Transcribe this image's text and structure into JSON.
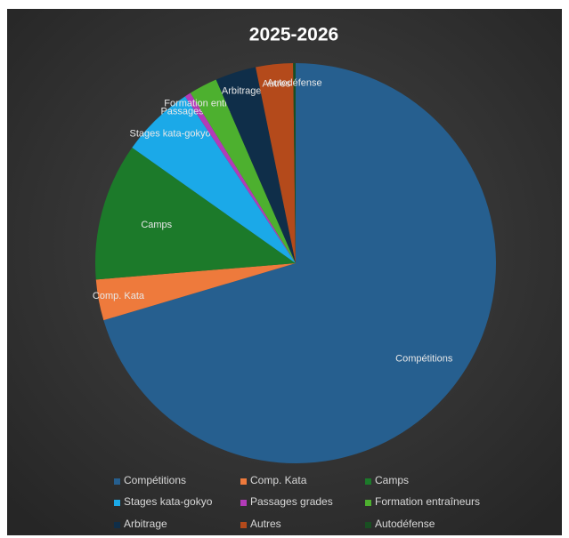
{
  "chart_data": {
    "type": "pie",
    "title": "2025-2026",
    "categories": [
      "Compétitions",
      "Comp. Kata",
      "Camps",
      "Stages kata-gokyo",
      "Passages grades",
      "Formation entraîneurs",
      "Arbitrage",
      "Autres",
      "Autodéfense"
    ],
    "values": [
      70.4,
      3.3,
      11.1,
      5.9,
      0.5,
      2.3,
      3.3,
      3.0,
      0.2
    ],
    "colors": [
      "#265f8f",
      "#ee7a3c",
      "#1c7a2a",
      "#1ba9e8",
      "#b33bb8",
      "#4db02f",
      "#0f2e49",
      "#b44a1b",
      "#194f22"
    ],
    "legend": "bottom"
  }
}
